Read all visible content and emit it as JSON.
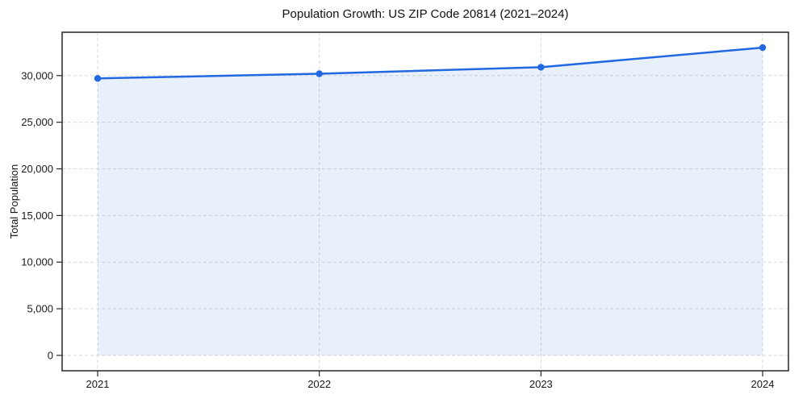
{
  "chart_data": {
    "type": "area",
    "title": "Population Growth: US ZIP Code 20814 (2021–2024)",
    "xlabel": "",
    "ylabel": "Total Population",
    "x": [
      2021,
      2022,
      2023,
      2024
    ],
    "x_tick_labels": [
      "2021",
      "2022",
      "2023",
      "2024"
    ],
    "series": [
      {
        "name": "Total Population",
        "values": [
          29700,
          30200,
          30900,
          33000
        ]
      }
    ],
    "y_ticks": [
      0,
      5000,
      10000,
      15000,
      20000,
      25000,
      30000
    ],
    "y_tick_labels": [
      "0",
      "5,000",
      "10,000",
      "15,000",
      "20,000",
      "25,000",
      "30,000"
    ],
    "ylim": [
      -1650,
      34650
    ],
    "area_baseline": 0,
    "grid": true,
    "grid_style": "dashed",
    "legend": "none",
    "colors": {
      "line": "#2268e0",
      "marker": "#2268e0",
      "area_fill": "rgba(34,104,224,0.10)",
      "grid": "#d9d9d9",
      "spine": "#262626",
      "text": "#1a1a1a",
      "background": "#ffffff"
    }
  }
}
